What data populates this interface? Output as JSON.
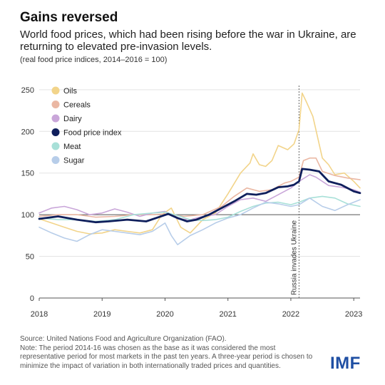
{
  "header": {
    "title": "Gains reversed",
    "subtitle": "World food prices, which had been rising before the war in Ukraine, are returning to elevated pre-invasion levels.",
    "units": "(real food price indices, 2014–2016 = 100)"
  },
  "footer": {
    "source": "Source: United Nations Food and Agriculture Organization (FAO).",
    "note": "Note: The period 2014-16 was chosen as the base as it was considered the most representative period for most markets in the past ten years. A three-year period is chosen to minimize the impact of variation in both internationally traded prices and quantities.",
    "logo": "IMF"
  },
  "chart_data": {
    "type": "line",
    "y_ticks": [
      0,
      50,
      100,
      150,
      200,
      250
    ],
    "x_ticks": [
      "2018",
      "2019",
      "2020",
      "2021",
      "2022",
      "2023"
    ],
    "ylim": [
      0,
      255
    ],
    "xlim": [
      2018.0,
      2023.1
    ],
    "legend_position": "top-left",
    "annotation": {
      "label": "Russia invades Ukraine",
      "x": 2022.13
    },
    "series": [
      {
        "name": "Oils",
        "color": "#f2d48a",
        "width": 1.6,
        "x": [
          2018.0,
          2018.2,
          2018.4,
          2018.6,
          2018.8,
          2019.0,
          2019.2,
          2019.4,
          2019.6,
          2019.8,
          2019.95,
          2020.1,
          2020.25,
          2020.4,
          2020.6,
          2020.8,
          2021.0,
          2021.2,
          2021.35,
          2021.4,
          2021.5,
          2021.6,
          2021.7,
          2021.8,
          2021.95,
          2022.05,
          2022.13,
          2022.18,
          2022.25,
          2022.35,
          2022.5,
          2022.6,
          2022.7,
          2022.85,
          2023.0,
          2023.1
        ],
        "values": [
          95,
          90,
          85,
          80,
          77,
          78,
          82,
          80,
          78,
          82,
          100,
          108,
          85,
          78,
          94,
          102,
          125,
          150,
          162,
          173,
          160,
          158,
          165,
          183,
          178,
          185,
          202,
          246,
          235,
          218,
          168,
          160,
          148,
          150,
          140,
          132
        ]
      },
      {
        "name": "Cereals",
        "color": "#eab7a3",
        "width": 1.6,
        "x": [
          2018.0,
          2018.3,
          2018.6,
          2018.9,
          2019.2,
          2019.5,
          2019.8,
          2020.0,
          2020.3,
          2020.6,
          2020.9,
          2021.1,
          2021.3,
          2021.5,
          2021.7,
          2021.9,
          2022.0,
          2022.13,
          2022.2,
          2022.3,
          2022.4,
          2022.5,
          2022.7,
          2022.9,
          2023.1
        ],
        "values": [
          98,
          100,
          100,
          97,
          98,
          100,
          100,
          101,
          98,
          100,
          110,
          122,
          132,
          128,
          130,
          138,
          140,
          145,
          165,
          168,
          168,
          152,
          147,
          144,
          142
        ]
      },
      {
        "name": "Dairy",
        "color": "#c9a6d9",
        "width": 1.6,
        "x": [
          2018.0,
          2018.2,
          2018.4,
          2018.6,
          2018.8,
          2019.0,
          2019.2,
          2019.4,
          2019.6,
          2019.8,
          2020.0,
          2020.2,
          2020.4,
          2020.6,
          2020.8,
          2021.0,
          2021.2,
          2021.4,
          2021.6,
          2021.8,
          2022.0,
          2022.13,
          2022.3,
          2022.4,
          2022.6,
          2022.8,
          2023.0,
          2023.1
        ],
        "values": [
          102,
          108,
          110,
          106,
          100,
          102,
          107,
          103,
          98,
          102,
          104,
          95,
          94,
          98,
          100,
          110,
          118,
          120,
          116,
          124,
          132,
          140,
          148,
          145,
          135,
          133,
          130,
          127
        ]
      },
      {
        "name": "Food price index",
        "color": "#0f1f5c",
        "width": 2.8,
        "x": [
          2018.0,
          2018.3,
          2018.6,
          2018.9,
          2019.1,
          2019.4,
          2019.7,
          2019.9,
          2020.05,
          2020.2,
          2020.35,
          2020.5,
          2020.7,
          2020.9,
          2021.1,
          2021.3,
          2021.45,
          2021.6,
          2021.8,
          2021.95,
          2022.05,
          2022.13,
          2022.18,
          2022.3,
          2022.45,
          2022.6,
          2022.8,
          2023.0,
          2023.1
        ],
        "values": [
          95,
          98,
          94,
          91,
          92,
          94,
          92,
          97,
          101,
          96,
          92,
          94,
          100,
          108,
          116,
          125,
          124,
          126,
          133,
          134,
          136,
          140,
          155,
          154,
          152,
          140,
          136,
          128,
          126
        ]
      },
      {
        "name": "Meat",
        "color": "#a8e0d8",
        "width": 1.6,
        "x": [
          2018.0,
          2018.3,
          2018.6,
          2018.9,
          2019.2,
          2019.5,
          2019.8,
          2020.0,
          2020.2,
          2020.4,
          2020.6,
          2020.8,
          2021.0,
          2021.2,
          2021.4,
          2021.6,
          2021.8,
          2022.0,
          2022.13,
          2022.3,
          2022.5,
          2022.7,
          2022.9,
          2023.1
        ],
        "values": [
          96,
          94,
          94,
          92,
          94,
          100,
          102,
          103,
          99,
          94,
          93,
          94,
          97,
          104,
          110,
          114,
          115,
          112,
          115,
          120,
          122,
          120,
          113,
          110
        ]
      },
      {
        "name": "Sugar",
        "color": "#b7cde9",
        "width": 1.6,
        "x": [
          2018.0,
          2018.2,
          2018.4,
          2018.6,
          2018.8,
          2019.0,
          2019.2,
          2019.4,
          2019.6,
          2019.8,
          2020.0,
          2020.1,
          2020.2,
          2020.4,
          2020.6,
          2020.8,
          2021.0,
          2021.2,
          2021.4,
          2021.6,
          2021.8,
          2022.0,
          2022.13,
          2022.3,
          2022.5,
          2022.7,
          2022.9,
          2023.1
        ],
        "values": [
          85,
          78,
          72,
          68,
          76,
          82,
          80,
          78,
          76,
          80,
          90,
          75,
          64,
          75,
          82,
          90,
          96,
          100,
          108,
          115,
          113,
          110,
          112,
          120,
          110,
          105,
          112,
          118
        ]
      }
    ]
  }
}
